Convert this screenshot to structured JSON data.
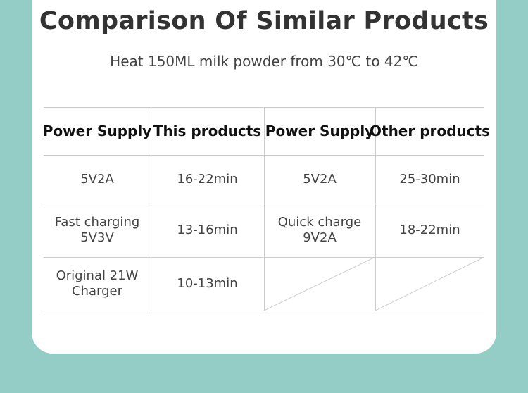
{
  "header": {
    "title": "Comparison Of Similar Products",
    "subtitle": "Heat 150ML milk powder from 30℃ to 42℃"
  },
  "table": {
    "columns": [
      "Power Supply",
      "This products",
      "Power Supply",
      "Other products"
    ],
    "rows": [
      [
        "5V2A",
        "16-22min",
        "5V2A",
        "25-30min"
      ],
      [
        "Fast charging 5V3V",
        "13-16min",
        "Quick charge 9V2A",
        "18-22min"
      ],
      [
        "Original 21W Charger",
        "10-13min",
        null,
        null
      ]
    ]
  }
}
